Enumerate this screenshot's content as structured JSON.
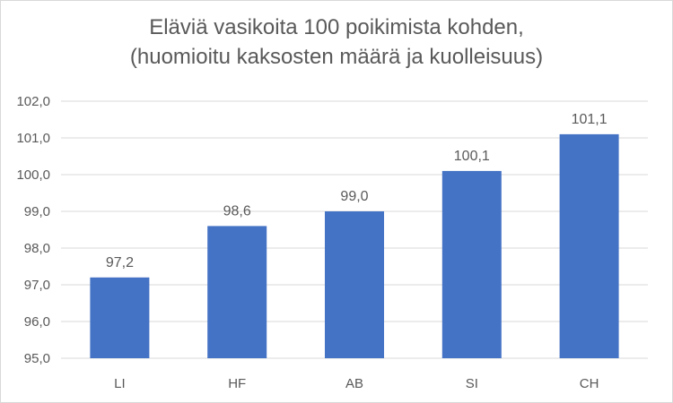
{
  "chart_data": {
    "type": "bar",
    "title_line1": "Eläviä vasikoita 100 poikimista kohden,",
    "title_line2": "(huomioitu kaksosten määrä ja kuolleisuus)",
    "categories": [
      "LI",
      "HF",
      "AB",
      "SI",
      "CH"
    ],
    "values": [
      97.2,
      98.6,
      99.0,
      100.1,
      101.1
    ],
    "value_labels": [
      "97,2",
      "98,6",
      "99,0",
      "100,1",
      "101,1"
    ],
    "yticks": [
      "95,0",
      "96,0",
      "97,0",
      "98,0",
      "99,0",
      "100,0",
      "101,0",
      "102,0"
    ],
    "ylim": [
      95,
      102
    ],
    "grid": true,
    "bar_color": "#4472C4"
  }
}
